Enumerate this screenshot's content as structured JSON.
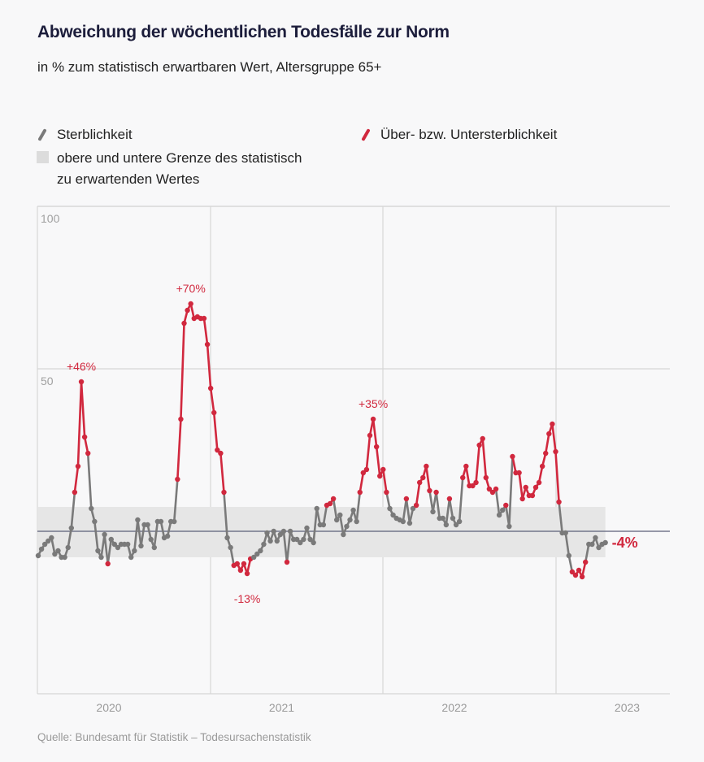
{
  "title": "Abweichung der wöchentlichen Todesfälle zur Norm",
  "subtitle": "in % zum statistisch erwartbaren Wert, Altersgruppe 65+",
  "legend": {
    "mortality": "Sterblichkeit",
    "excess": "Über- bzw. Untersterblichkeit",
    "band_line1": "obere und untere Grenze des statistisch",
    "band_line2": "zu erwartenden Wertes"
  },
  "source": "Quelle: Bundesamt für Statistik – Todesursachenstatistik",
  "colors": {
    "normal": "#7a7a7a",
    "excess": "#d1283e",
    "band": "#e6e6e6",
    "zero": "#5b5f78",
    "grid": "#d6d6d6",
    "title": "#1c1d3b"
  },
  "chart_data": {
    "type": "line",
    "title": "Abweichung der wöchentlichen Todesfälle zur Norm",
    "ylabel": "in % zum statistisch erwartbaren Wert",
    "ylim": [
      -50,
      100
    ],
    "y_ticks": [
      {
        "value": 100,
        "label": "100"
      },
      {
        "value": 50,
        "label": "50"
      }
    ],
    "x_ticks": [
      "2020",
      "2021",
      "2022",
      "2023"
    ],
    "grid": true,
    "legend_position": "top",
    "band": {
      "upper": 7.5,
      "lower": -8,
      "label": "obere und untere Grenze des statistisch zu erwartenden Wertes"
    },
    "series": [
      {
        "name": "Sterblichkeit",
        "values": [
          -7.5,
          -5.5,
          -4,
          -3,
          -2,
          -7,
          -6,
          -8,
          -8,
          -5,
          1,
          12,
          20,
          46,
          29,
          24,
          7,
          3,
          -6,
          -8,
          -1,
          -10,
          -2.5,
          -4,
          -5,
          -4,
          -4,
          -4,
          -8,
          -6,
          3.5,
          -4.5,
          2,
          2,
          -2.5,
          -5,
          3,
          3,
          -2,
          -1.5,
          3,
          3,
          16,
          34.5,
          64,
          68,
          70,
          65.5,
          66,
          65.5,
          65.5,
          57.5,
          44,
          36.5,
          25,
          24,
          12,
          -2,
          -5,
          -10.5,
          -10,
          -12,
          -10,
          -13,
          -8.5,
          -8,
          -7,
          -6,
          -4,
          -0.5,
          -3,
          0,
          -3,
          -1,
          0,
          -9.5,
          0,
          -2.5,
          -2.5,
          -3.5,
          -2.5,
          1,
          -2.5,
          -3.5,
          7,
          2,
          2,
          8,
          8.5,
          10,
          3.5,
          5,
          -1,
          1.5,
          3.5,
          6.5,
          3,
          12,
          18,
          19,
          29.5,
          34.5,
          26,
          17,
          19,
          12,
          7,
          5,
          4,
          3.5,
          3,
          10,
          2.5,
          7,
          8,
          15,
          16.5,
          20,
          12.5,
          6,
          12,
          4,
          4,
          2,
          10,
          4,
          2,
          3,
          16.5,
          20,
          14,
          14,
          15,
          26.5,
          28.5,
          16.5,
          13,
          12,
          13,
          5,
          6.5,
          8,
          1.5,
          23,
          18,
          18,
          10,
          13.5,
          11,
          11,
          13.5,
          15,
          20,
          24,
          30,
          33,
          24.5,
          9,
          -0.5,
          -0.5,
          -7.5,
          -12.5,
          -13.5,
          -12,
          -14,
          -9.5,
          -4,
          -4,
          -2,
          -5,
          -4,
          -3.5
        ]
      }
    ],
    "annotations": [
      {
        "label": "+46%",
        "index": 13
      },
      {
        "label": "+70%",
        "index": 46
      },
      {
        "label": "-13%",
        "index": 63
      },
      {
        "label": "+35%",
        "index": 101
      },
      {
        "label": "-4%",
        "index": 171,
        "style": "end-label"
      }
    ]
  }
}
